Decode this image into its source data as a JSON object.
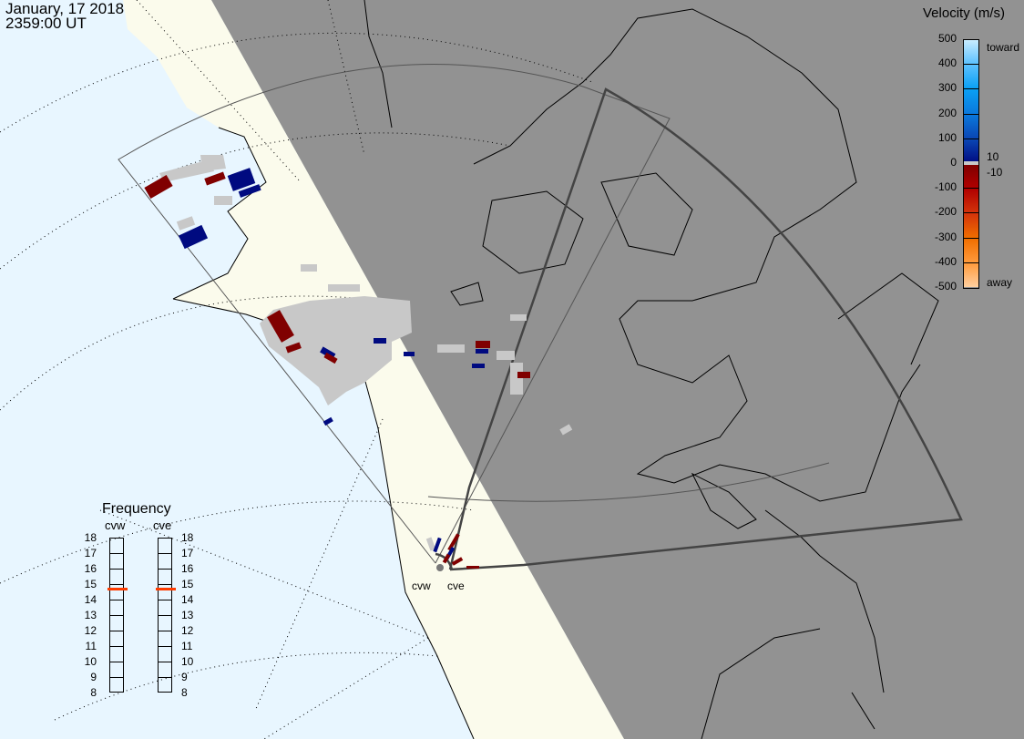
{
  "header": {
    "date": "January, 17 2018",
    "time": "2359:00 UT"
  },
  "colorbar": {
    "title": "Velocity (m/s)",
    "ticks": [
      "500",
      "400",
      "300",
      "200",
      "100",
      "0",
      "-100",
      "-200",
      "-300",
      "-400",
      "-500"
    ],
    "label_toward": "toward",
    "label_away": "away",
    "label_pos_gs": "10",
    "label_neg_gs": "-10",
    "colors": [
      "#c8ecff",
      "#5cc1ff",
      "#0aa0f5",
      "#0a78dc",
      "#0a46b4",
      "#000a80",
      "#800000",
      "#b00000",
      "#d2320a",
      "#f06e00",
      "#ff9a3c",
      "#ffd0a0"
    ],
    "ground_scatter_color": "#c8c8c8"
  },
  "frequency": {
    "title": "Frequency",
    "unit_range": [
      "8",
      "18"
    ],
    "ticks": [
      "18",
      "17",
      "16",
      "15",
      "14",
      "13",
      "12",
      "11",
      "10",
      "9",
      "8"
    ],
    "radars": [
      {
        "name": "cvw",
        "frequency_mhz": 14.7
      },
      {
        "name": "cve",
        "frequency_mhz": 14.7
      }
    ],
    "marker_color": "#ff3c00"
  },
  "sites": [
    {
      "name": "cvw"
    },
    {
      "name": "cve"
    }
  ],
  "map": {
    "ocean_color": "#e8f6ff",
    "land_color": "#fbfbec",
    "night_color": "#929292",
    "projection": "polar stereographic"
  }
}
